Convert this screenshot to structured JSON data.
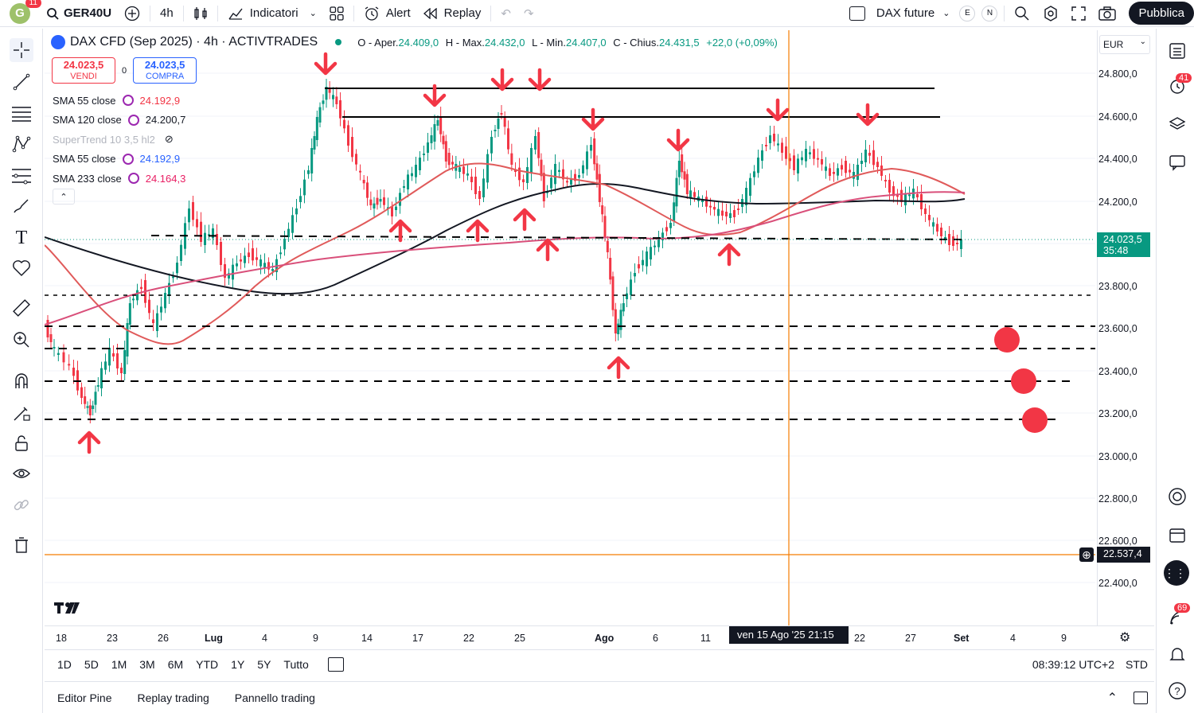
{
  "topbar": {
    "avatar_letter": "G",
    "avatar_badge": "11",
    "symbol": "GER40U",
    "interval": "4h",
    "indicators_label": "Indicatori",
    "alert_label": "Alert",
    "replay_label": "Replay",
    "compare_symbol": "DAX future",
    "badge_e": "E",
    "badge_n": "N",
    "publish_label": "Pubblica"
  },
  "legend": {
    "title": "DAX CFD (Sep 2025) · 4h · ACTIVTRADES",
    "open_label": "O - Aper.",
    "open": "24.409,0",
    "high_label": "H - Max.",
    "high": "24.432,0",
    "low_label": "L - Min.",
    "low": "24.407,0",
    "close_label": "C - Chius.",
    "close": "24.431,5",
    "change": "+22,0 (+0,09%)"
  },
  "trade": {
    "sell_price": "24.023,5",
    "sell_label": "VENDI",
    "spread": "0",
    "buy_price": "24.023,5",
    "buy_label": "COMPRA"
  },
  "indicators": [
    {
      "name": "SMA 55 close",
      "value": "24.192,9",
      "color": "#f23645"
    },
    {
      "name": "SMA 120 close",
      "value": "24.200,7",
      "color": "#131722"
    },
    {
      "name": "SuperTrend 10 3,5 hl2",
      "value": "",
      "color": "#b2b5be"
    },
    {
      "name": "SMA 55 close",
      "value": "24.192,9",
      "color": "#2962ff"
    },
    {
      "name": "SMA 233 close",
      "value": "24.164,3",
      "color": "#e91e63"
    }
  ],
  "price_axis": {
    "currency": "EUR",
    "labels": [
      "24.800,0",
      "24.600,0",
      "24.400,0",
      "24.200,0",
      "23.800,0",
      "23.600,0",
      "23.400,0",
      "23.200,0",
      "23.000,0",
      "22.800,0",
      "22.600,0",
      "22.400,0"
    ],
    "current_price": "24.023,5",
    "countdown": "35:48",
    "crosshair_price": "22.537,4"
  },
  "time_axis": {
    "labels": [
      "18",
      "23",
      "26",
      "Lug",
      "4",
      "9",
      "14",
      "17",
      "22",
      "25",
      "Ago",
      "6",
      "11",
      "22",
      "27",
      "Set",
      "4",
      "9"
    ],
    "tooltip": "ven 15 Ago '25   21:15"
  },
  "ranges": [
    "1D",
    "5D",
    "1M",
    "3M",
    "6M",
    "YTD",
    "1Y",
    "5Y",
    "Tutto"
  ],
  "clock": "08:39:12 UTC+2",
  "session": "STD",
  "bottom_tabs": [
    "Editor Pine",
    "Replay trading",
    "Pannello trading"
  ],
  "right_badges": {
    "alerts": "41",
    "news": "69"
  },
  "chart_data": {
    "type": "line",
    "title": "DAX CFD (Sep 2025) · 4h · ACTIVTRADES",
    "ylim": [
      22300,
      24950
    ],
    "support_resistance": [
      24730,
      24600,
      24040,
      23760,
      23610,
      23500,
      23360,
      23180
    ],
    "crosshair_price": 22537.4
  }
}
